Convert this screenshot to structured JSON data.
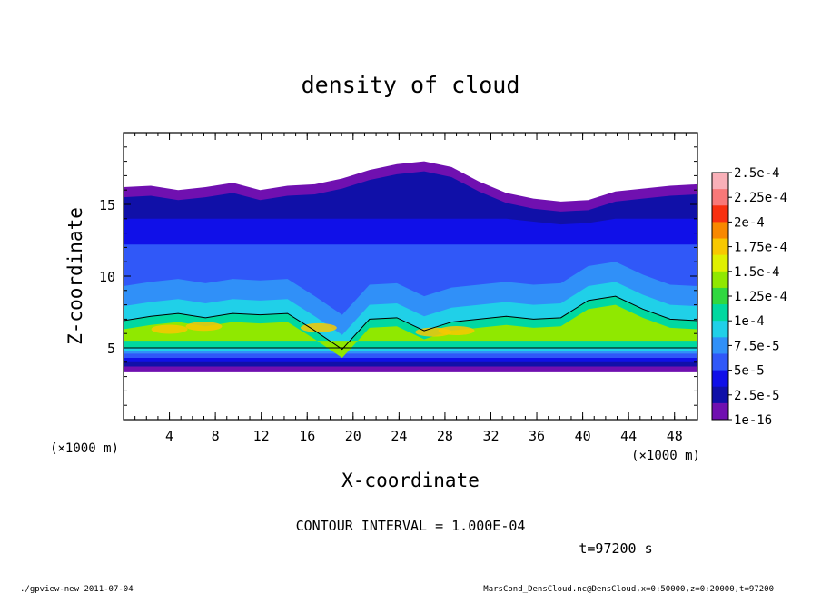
{
  "chart_data": {
    "type": "heatmap",
    "title": "density of cloud",
    "xlabel": "X-coordinate",
    "ylabel": "Z-coordinate",
    "x_unit": "(×1000 m)",
    "x_unit_right": "(×1000 m)",
    "xlim": [
      0,
      50
    ],
    "ylim": [
      0,
      20
    ],
    "x_ticks": [
      "4",
      "8",
      "12",
      "16",
      "20",
      "24",
      "28",
      "32",
      "36",
      "40",
      "44",
      "48"
    ],
    "y_ticks": [
      "5",
      "10",
      "15"
    ],
    "colorbar": {
      "labels": [
        "2.5e-4",
        "2.25e-4",
        "2e-4",
        "1.75e-4",
        "1.5e-4",
        "1.25e-4",
        "1e-4",
        "7.5e-5",
        "5e-5",
        "2.5e-5",
        "1e-16"
      ],
      "colors": [
        "#f9b0b8",
        "#f87878",
        "#f83010",
        "#f88800",
        "#f8c800",
        "#e0f000",
        "#90e800",
        "#30d840",
        "#00d8a0",
        "#20d0e8",
        "#3090f8",
        "#3058f8",
        "#1010e8",
        "#1010a8",
        "#7010b0"
      ]
    },
    "contour_interval_text": "CONTOUR INTERVAL = 1.000E-04",
    "time_text": "t=97200 s",
    "footer_left": "./gpview-new   2011-07-04",
    "footer_right": "MarsCond_DensCloud.nc@DensCloud,x=0:50000,z=0:20000,t=97200",
    "regions": {
      "cloud_top_km": [
        16.2,
        16.3,
        16.0,
        16.2,
        16.5,
        16.0,
        16.3,
        16.4,
        16.8,
        17.4,
        17.8,
        18.0,
        17.6,
        16.6,
        15.8,
        15.4,
        15.2,
        15.3,
        15.9,
        16.1,
        16.3,
        16.4
      ],
      "cloud_base_km": 3.5,
      "band_bottom_km": 5.0,
      "band_top_km": [
        6.9,
        7.2,
        7.4,
        7.1,
        7.4,
        7.3,
        7.4,
        6.2,
        4.9,
        7.0,
        7.1,
        6.2,
        6.8,
        7.0,
        7.2,
        7.0,
        7.1,
        8.3,
        8.6,
        7.7,
        7.0,
        6.9
      ]
    }
  }
}
